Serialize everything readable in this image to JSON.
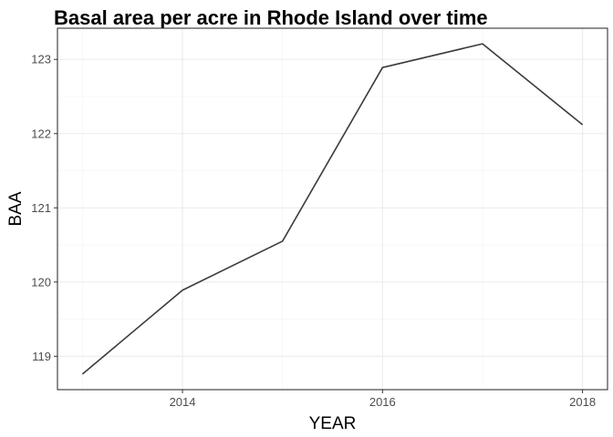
{
  "chart_data": {
    "type": "line",
    "title": "Basal area per acre in Rhode Island over time",
    "xlabel": "YEAR",
    "ylabel": "BAA",
    "x": [
      2013,
      2014,
      2015,
      2016,
      2017,
      2018
    ],
    "series": [
      {
        "values": [
          118.76,
          119.89,
          120.55,
          122.89,
          123.21,
          122.12
        ]
      }
    ],
    "xlim": [
      2012.75,
      2018.25
    ],
    "ylim": [
      118.55,
      123.42
    ],
    "x_ticks": [
      2014,
      2016,
      2018
    ],
    "y_ticks": [
      119,
      120,
      121,
      122,
      123
    ],
    "grid": true,
    "legend": "none"
  }
}
